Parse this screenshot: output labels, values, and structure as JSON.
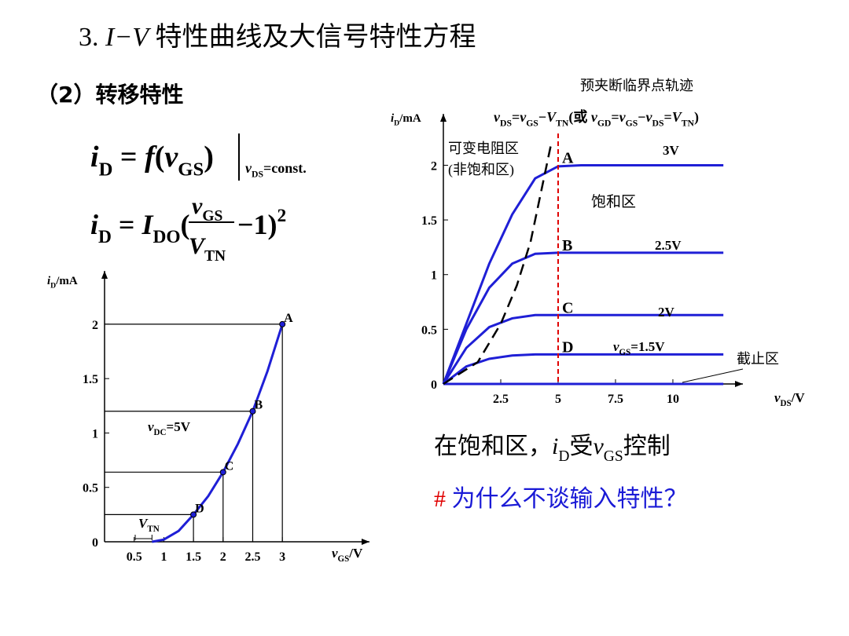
{
  "header": {
    "title": [
      {
        "text": "3. "
      },
      {
        "text": "I−V",
        "italic": true
      },
      {
        "text": " 特性曲线及大信号特性方程"
      }
    ],
    "subtitle": "（2）转移特性"
  },
  "formulas": {
    "f1": {
      "lhs": [
        {
          "text": "i",
          "italic": true
        },
        {
          "text": "D",
          "sub": true
        },
        {
          "text": " = "
        },
        {
          "text": "f",
          "italic": true
        },
        {
          "text": "("
        },
        {
          "text": "v",
          "italic": true
        },
        {
          "text": "GS",
          "sub": true
        },
        {
          "text": ")"
        }
      ],
      "condition": [
        {
          "text": "v",
          "italic": true
        },
        {
          "text": "DS",
          "sub": true
        },
        {
          "text": "=const."
        }
      ]
    },
    "f2": {
      "lhs": [
        {
          "text": "i",
          "italic": true
        },
        {
          "text": "D",
          "sub": true
        },
        {
          "text": " = "
        },
        {
          "text": "I",
          "italic": true
        },
        {
          "text": "DO",
          "sub": true
        },
        {
          "text": "("
        }
      ],
      "numerator": [
        {
          "text": "v",
          "italic": true
        },
        {
          "text": "GS",
          "sub": true
        }
      ],
      "denominator": [
        {
          "text": "V",
          "italic": true
        },
        {
          "text": "TN",
          "sub": true
        }
      ],
      "rhs": [
        {
          "text": "−1)"
        },
        {
          "text": "2",
          "sup": true
        }
      ]
    }
  },
  "chart_data": [
    {
      "type": "line",
      "ylabel": [
        {
          "text": "i",
          "italic": true
        },
        {
          "text": "D",
          "sub": true
        },
        {
          "text": "/mA"
        }
      ],
      "xlabel": [
        {
          "text": "v",
          "italic": true
        },
        {
          "text": "GS",
          "sub": true
        },
        {
          "text": "/V"
        }
      ],
      "x": [
        0.8,
        1.0,
        1.25,
        1.5,
        1.75,
        2,
        2.25,
        2.5,
        2.75,
        3
      ],
      "series": [
        {
          "color": "#1f1fd6",
          "values": [
            0,
            0.02,
            0.1,
            0.25,
            0.42,
            0.64,
            0.9,
            1.2,
            1.57,
            2.0
          ]
        }
      ],
      "xlim": [
        0,
        4.47
      ],
      "ylim": [
        0,
        2.49
      ],
      "xticks": [
        0.5,
        1,
        1.5,
        2,
        2.5,
        3
      ],
      "yticks": [
        0,
        0.5,
        1,
        1.5,
        2
      ],
      "points": [
        {
          "label": "A",
          "x": 3,
          "y": 2
        },
        {
          "label": "B",
          "x": 2.5,
          "y": 1.2
        },
        {
          "label": "C",
          "x": 2,
          "y": 0.64
        },
        {
          "label": "D",
          "x": 1.5,
          "y": 0.25
        }
      ],
      "condition": [
        {
          "text": "v",
          "italic": true
        },
        {
          "text": "DC",
          "sub": true
        },
        {
          "text": "=5V"
        }
      ],
      "vtn": {
        "x": 0.8,
        "label": [
          {
            "text": "V",
            "italic": true
          },
          {
            "text": "TN",
            "sub": true
          }
        ]
      }
    },
    {
      "type": "line",
      "ylabel": [
        {
          "text": "i",
          "italic": true
        },
        {
          "text": "D",
          "sub": true
        },
        {
          "text": "/mA"
        }
      ],
      "xlabel": [
        {
          "text": "v",
          "italic": true
        },
        {
          "text": "DS",
          "sub": true
        },
        {
          "text": "/V"
        }
      ],
      "x": [
        0,
        1,
        2,
        3,
        4,
        5,
        6,
        8,
        10,
        12.2
      ],
      "series": [
        {
          "color": "#1f1fd6",
          "label": [
            {
              "text": "3V"
            }
          ],
          "values": [
            0,
            0.55,
            1.1,
            1.55,
            1.88,
            1.99,
            2,
            2,
            2,
            2
          ]
        },
        {
          "color": "#1f1fd6",
          "label": [
            {
              "text": "2.5V"
            }
          ],
          "values": [
            0,
            0.5,
            0.88,
            1.1,
            1.19,
            1.2,
            1.2,
            1.2,
            1.2,
            1.2
          ]
        },
        {
          "color": "#1f1fd6",
          "label": [
            {
              "text": "2V"
            }
          ],
          "values": [
            0,
            0.33,
            0.52,
            0.6,
            0.63,
            0.63,
            0.63,
            0.63,
            0.63,
            0.63
          ]
        },
        {
          "color": "#1f1fd6",
          "label": [
            {
              "text": "v",
              "italic": true
            },
            {
              "text": "GS",
              "sub": true
            },
            {
              "text": "=1.5V"
            }
          ],
          "values": [
            0,
            0.16,
            0.23,
            0.26,
            0.27,
            0.27,
            0.27,
            0.27,
            0.27,
            0.27
          ]
        },
        {
          "color": "#1f1fd6",
          "values": [
            0,
            0,
            0,
            0,
            0,
            0,
            0,
            0,
            0,
            0
          ]
        }
      ],
      "xlim": [
        0,
        13.05
      ],
      "ylim": [
        0,
        2.47
      ],
      "xticks": [
        2.5,
        5,
        7.5,
        10
      ],
      "yticks": [
        0,
        0.5,
        1,
        1.5,
        2
      ],
      "points": [
        {
          "label": "A",
          "x": 5,
          "y": 2
        },
        {
          "label": "B",
          "x": 5,
          "y": 1.2
        },
        {
          "label": "C",
          "x": 5,
          "y": 0.63
        },
        {
          "label": "D",
          "x": 5,
          "y": 0.27
        }
      ],
      "locus": {
        "title": "预夹断临界点轨迹",
        "formula": [
          {
            "text": "v",
            "italic": true
          },
          {
            "text": "DS",
            "sub": true
          },
          {
            "text": "="
          },
          {
            "text": "v",
            "italic": true
          },
          {
            "text": "GS",
            "sub": true
          },
          {
            "text": "−"
          },
          {
            "text": "V",
            "italic": true
          },
          {
            "text": "TN",
            "sub": true
          },
          {
            "text": "(或 "
          },
          {
            "text": "v",
            "italic": true
          },
          {
            "text": "GD",
            "sub": true
          },
          {
            "text": "="
          },
          {
            "text": "v",
            "italic": true
          },
          {
            "text": "GS",
            "sub": true
          },
          {
            "text": "−"
          },
          {
            "text": "v",
            "italic": true
          },
          {
            "text": "DS",
            "sub": true
          },
          {
            "text": "="
          },
          {
            "text": "V",
            "italic": true
          },
          {
            "text": "TN",
            "sub": true
          },
          {
            "text": ")"
          }
        ],
        "x": [
          0,
          1.5,
          2.5,
          3.2,
          3.8,
          4.3,
          4.7
        ],
        "y": [
          0,
          0.2,
          0.55,
          0.9,
          1.3,
          1.8,
          2.2
        ]
      },
      "vline": 5,
      "regions": {
        "ohmic": "可变电阻区",
        "ohmic2": "(非饱和区)",
        "saturation": "饱和区",
        "cutoff": "截止区"
      }
    }
  ],
  "notes": [
    [
      {
        "text": "在饱和区，"
      },
      {
        "text": "i",
        "italic": true
      },
      {
        "text": "D",
        "sub": true
      },
      {
        "text": "受"
      },
      {
        "text": "v",
        "italic": true
      },
      {
        "text": "GS",
        "sub": true
      },
      {
        "text": "控制"
      }
    ],
    [
      {
        "text": "# ",
        "color": "#e00000"
      },
      {
        "text": "为什么不谈输入特性？",
        "color": "#1a1ad6"
      }
    ]
  ]
}
